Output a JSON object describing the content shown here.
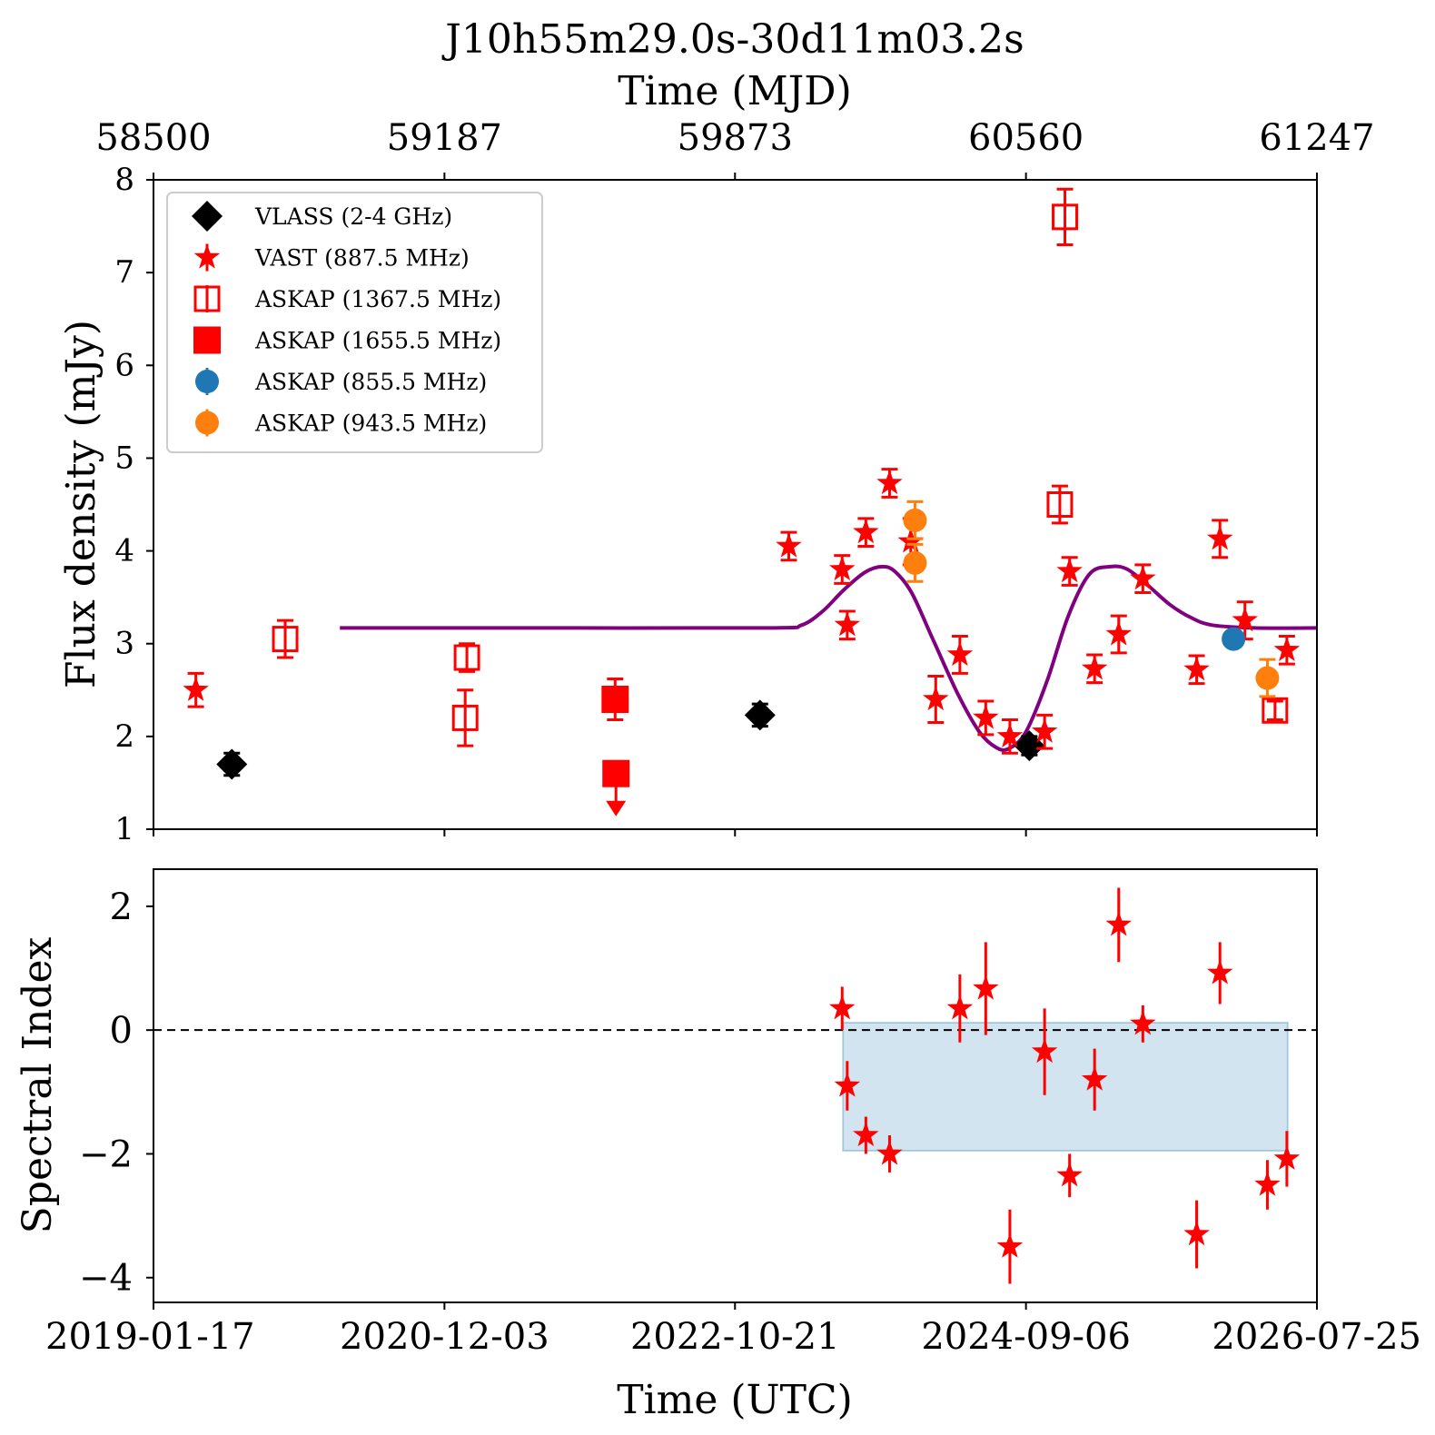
{
  "chart_data": [
    {
      "type": "scatter",
      "title": "J10h55m29.0s-30d11m03.2s",
      "top_axis_label": "Time (MJD)",
      "top_ticks": [
        "58500",
        "59187",
        "59873",
        "60560",
        "61247"
      ],
      "ylabel": "Flux density (mJy)",
      "ylim": [
        1,
        8
      ],
      "yticks": [
        "1",
        "2",
        "3",
        "4",
        "5",
        "6",
        "7",
        "8"
      ],
      "xlim_mjd": [
        58500,
        61247
      ],
      "legend_position": "upper-left",
      "legend": [
        {
          "label": "VLASS (2-4 GHz)",
          "marker": "diamond",
          "color": "#000000"
        },
        {
          "label": "VAST (887.5 MHz)",
          "marker": "star",
          "color": "#ff0000"
        },
        {
          "label": "ASKAP (1367.5 MHz)",
          "marker": "open-square",
          "color": "#ff0000"
        },
        {
          "label": "ASKAP (1655.5 MHz)",
          "marker": "square",
          "color": "#ff0000"
        },
        {
          "label": "ASKAP (855.5 MHz)",
          "marker": "circle",
          "color": "#1f77b4"
        },
        {
          "label": "ASKAP (943.5 MHz)",
          "marker": "circle",
          "color": "#ff7f0e"
        }
      ],
      "series": [
        {
          "name": "VLASS (2-4 GHz)",
          "marker": "diamond",
          "color": "#000000",
          "points": [
            {
              "x": 58685,
              "y": 1.7,
              "err": 0.12
            },
            {
              "x": 59932,
              "y": 2.23,
              "err": 0.12
            },
            {
              "x": 60568,
              "y": 1.9,
              "err": 0.1
            }
          ]
        },
        {
          "name": "VAST (887.5 MHz)",
          "marker": "star",
          "color": "#ff0000",
          "points": [
            {
              "x": 58600,
              "y": 2.5,
              "err": 0.18
            },
            {
              "x": 60000,
              "y": 4.05,
              "err": 0.15
            },
            {
              "x": 60126,
              "y": 3.8,
              "err": 0.15
            },
            {
              "x": 60138,
              "y": 3.2,
              "err": 0.15
            },
            {
              "x": 60182,
              "y": 4.2,
              "err": 0.15
            },
            {
              "x": 60238,
              "y": 4.73,
              "err": 0.15
            },
            {
              "x": 60288,
              "y": 4.1,
              "err": 0.25
            },
            {
              "x": 60347,
              "y": 2.4,
              "err": 0.25
            },
            {
              "x": 60404,
              "y": 2.88,
              "err": 0.2
            },
            {
              "x": 60465,
              "y": 2.2,
              "err": 0.18
            },
            {
              "x": 60522,
              "y": 2.0,
              "err": 0.18
            },
            {
              "x": 60604,
              "y": 2.05,
              "err": 0.18
            },
            {
              "x": 60663,
              "y": 3.78,
              "err": 0.15
            },
            {
              "x": 60722,
              "y": 2.73,
              "err": 0.15
            },
            {
              "x": 60779,
              "y": 3.1,
              "err": 0.2
            },
            {
              "x": 60836,
              "y": 3.7,
              "err": 0.15
            },
            {
              "x": 60963,
              "y": 2.72,
              "err": 0.15
            },
            {
              "x": 61018,
              "y": 4.13,
              "err": 0.2
            },
            {
              "x": 61077,
              "y": 3.25,
              "err": 0.2
            },
            {
              "x": 61176,
              "y": 2.93,
              "err": 0.15
            }
          ]
        },
        {
          "name": "ASKAP (1367.5 MHz)",
          "marker": "open-square",
          "color": "#ff0000",
          "points": [
            {
              "x": 58811,
              "y": 3.05,
              "err": 0.2
            },
            {
              "x": 59240,
              "y": 2.85,
              "err": 0.15
            },
            {
              "x": 59236,
              "y": 2.2,
              "err": 0.3
            },
            {
              "x": 60652,
              "y": 7.6,
              "err": 0.3
            },
            {
              "x": 60640,
              "y": 4.5,
              "err": 0.2
            },
            {
              "x": 61148,
              "y": 2.28,
              "err": 0.1
            }
          ]
        },
        {
          "name": "ASKAP (1655.5 MHz)",
          "marker": "square",
          "color": "#ff0000",
          "points": [
            {
              "x": 59590,
              "y": 2.4,
              "err": 0.22
            },
            {
              "x": 59592,
              "y": 1.6,
              "err": 0,
              "upper_limit": true
            }
          ]
        },
        {
          "name": "ASKAP (855.5 MHz)",
          "marker": "circle",
          "color": "#1f77b4",
          "points": [
            {
              "x": 61050,
              "y": 3.05,
              "err": 0
            }
          ]
        },
        {
          "name": "ASKAP (943.5 MHz)",
          "marker": "circle",
          "color": "#ff7f0e",
          "points": [
            {
              "x": 60298,
              "y": 4.33,
              "err": 0.2
            },
            {
              "x": 60298,
              "y": 3.87,
              "err": 0.2
            },
            {
              "x": 61130,
              "y": 2.63,
              "err": 0.2
            }
          ]
        }
      ],
      "model_curve": {
        "color": "#800080",
        "points": [
          [
            58940,
            3.17
          ],
          [
            59500,
            3.17
          ],
          [
            59960,
            3.17
          ],
          [
            60030,
            3.2
          ],
          [
            60080,
            3.35
          ],
          [
            60130,
            3.58
          ],
          [
            60180,
            3.77
          ],
          [
            60220,
            3.83
          ],
          [
            60250,
            3.78
          ],
          [
            60290,
            3.55
          ],
          [
            60340,
            3.05
          ],
          [
            60400,
            2.45
          ],
          [
            60450,
            2.05
          ],
          [
            60490,
            1.88
          ],
          [
            60520,
            1.87
          ],
          [
            60560,
            2.05
          ],
          [
            60610,
            2.6
          ],
          [
            60660,
            3.3
          ],
          [
            60710,
            3.75
          ],
          [
            60760,
            3.83
          ],
          [
            60800,
            3.8
          ],
          [
            60850,
            3.62
          ],
          [
            60900,
            3.42
          ],
          [
            60950,
            3.28
          ],
          [
            61000,
            3.2
          ],
          [
            61100,
            3.17
          ],
          [
            61247,
            3.17
          ]
        ]
      }
    },
    {
      "type": "scatter",
      "ylabel": "Spectral Index",
      "xlabel": "Time (UTC)",
      "ylim": [
        -4.4,
        2.6
      ],
      "yticks": [
        "2",
        "0",
        "−2",
        "−4"
      ],
      "xticks": [
        "2019-01-17",
        "2020-12-03",
        "2022-10-21",
        "2024-09-06",
        "2026-07-25"
      ],
      "reference_line": 0,
      "shaded_band": {
        "x": [
          60128,
          61178
        ],
        "y": [
          -1.95,
          0.12
        ],
        "color": "#1f77b4"
      },
      "series": [
        {
          "name": "VAST (887.5 MHz)",
          "marker": "star",
          "color": "#ff0000",
          "points": [
            {
              "x": 60126,
              "y": 0.35,
              "err": 0.35
            },
            {
              "x": 60138,
              "y": -0.9,
              "err": 0.4
            },
            {
              "x": 60182,
              "y": -1.7,
              "err": 0.3
            },
            {
              "x": 60238,
              "y": -2.0,
              "err": 0.3
            },
            {
              "x": 60404,
              "y": 0.35,
              "err": 0.55
            },
            {
              "x": 60465,
              "y": 0.67,
              "err": 0.75
            },
            {
              "x": 60522,
              "y": -3.5,
              "err": 0.6
            },
            {
              "x": 60604,
              "y": -0.35,
              "err": 0.7
            },
            {
              "x": 60663,
              "y": -2.35,
              "err": 0.35
            },
            {
              "x": 60722,
              "y": -0.8,
              "err": 0.5
            },
            {
              "x": 60779,
              "y": 1.7,
              "err": 0.6
            },
            {
              "x": 60836,
              "y": 0.1,
              "err": 0.3
            },
            {
              "x": 60963,
              "y": -3.3,
              "err": 0.55
            },
            {
              "x": 61018,
              "y": 0.92,
              "err": 0.5
            },
            {
              "x": 61130,
              "y": -2.5,
              "err": 0.4
            },
            {
              "x": 61176,
              "y": -2.08,
              "err": 0.45
            }
          ]
        }
      ]
    }
  ]
}
